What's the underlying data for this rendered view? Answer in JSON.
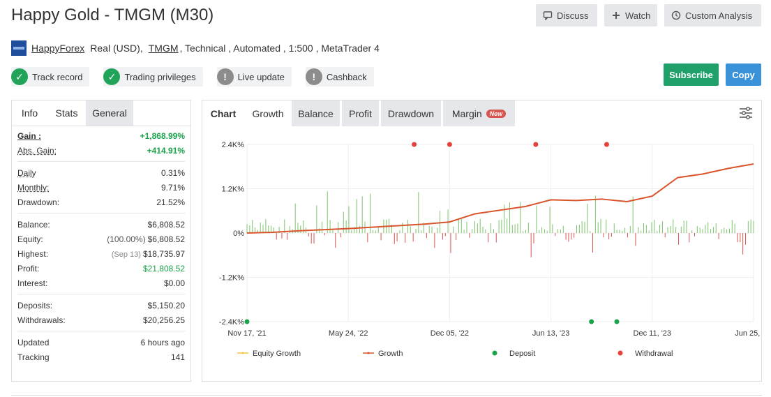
{
  "header": {
    "title": "Happy Gold - TMGM (M30)",
    "buttons": [
      {
        "label": "Discuss",
        "icon": "comment-icon"
      },
      {
        "label": "Watch",
        "icon": "plus-icon"
      },
      {
        "label": "Custom Analysis",
        "icon": "clock-icon"
      }
    ]
  },
  "meta": {
    "author": "HappyForex",
    "account_type": "Real (USD),",
    "broker": "TMGM",
    "details": ", Technical , Automated , 1:500 , MetaTrader 4"
  },
  "badges": [
    {
      "label": "Track record",
      "status": "ok"
    },
    {
      "label": "Trading privileges",
      "status": "ok"
    },
    {
      "label": "Live update",
      "status": "warn"
    },
    {
      "label": "Cashback",
      "status": "warn"
    }
  ],
  "actions": {
    "subscribe": "Subscribe",
    "copy": "Copy"
  },
  "left_tabs": [
    "Info",
    "Stats",
    "General"
  ],
  "stats": {
    "gain": {
      "label": "Gain :",
      "value": "+1,868.99%"
    },
    "abs_gain": {
      "label": "Abs. Gain:",
      "value": "+414.91%"
    },
    "daily": {
      "label": "Daily",
      "value": "0.31%"
    },
    "monthly": {
      "label": "Monthly:",
      "value": "9.71%"
    },
    "drawdown": {
      "label": "Drawdown:",
      "value": "21.52%"
    },
    "balance": {
      "label": "Balance:",
      "value": "$6,808.52"
    },
    "equity": {
      "label": "Equity:",
      "pre": "(100.00%)",
      "value": "$6,808.52"
    },
    "highest": {
      "label": "Highest:",
      "pre": "(Sep 13)",
      "value": "$18,735.97"
    },
    "profit": {
      "label": "Profit:",
      "value": "$21,808.52"
    },
    "interest": {
      "label": "Interest:",
      "value": "$0.00"
    },
    "deposits": {
      "label": "Deposits:",
      "value": "$5,150.20"
    },
    "withdrawals": {
      "label": "Withdrawals:",
      "value": "$20,256.25"
    },
    "updated": {
      "label": "Updated",
      "value": "6 hours ago"
    },
    "tracking": {
      "label": "Tracking",
      "value": "141"
    }
  },
  "chart_tabs": {
    "chart": "Chart",
    "growth": "Growth",
    "balance": "Balance",
    "profit": "Profit",
    "drawdown": "Drawdown",
    "margin": "Margin",
    "new_badge": "New"
  },
  "colors": {
    "growth": "#d9532b",
    "equity": "#f4c542",
    "deposit": "#1aa34a",
    "withdrawal": "#e2433a",
    "bar_pos": "#7cc36a",
    "bar_neg": "#d9534f"
  },
  "chart_data": {
    "type": "line",
    "y_ticks": [
      "2.4K%",
      "1.2K%",
      "0%",
      "-1.2K%",
      "-2.4K%"
    ],
    "y_tick_values": [
      2400,
      1200,
      0,
      -1200,
      -2400
    ],
    "ylim": [
      -2400,
      2400
    ],
    "x_ticks": [
      "Nov 17, '21",
      "May 24, '22",
      "Dec 05, '22",
      "Jun 13, '23",
      "Dec 11, '23",
      "Jun 25, '24"
    ],
    "grid": true,
    "legend_position": "bottom",
    "legend": [
      "Equity Growth",
      "Growth",
      "Deposit",
      "Withdrawal"
    ],
    "series": [
      {
        "name": "Growth",
        "points": [
          [
            0,
            0
          ],
          [
            0.05,
            20
          ],
          [
            0.1,
            60
          ],
          [
            0.15,
            90
          ],
          [
            0.2,
            120
          ],
          [
            0.25,
            160
          ],
          [
            0.3,
            200
          ],
          [
            0.35,
            240
          ],
          [
            0.4,
            300
          ],
          [
            0.45,
            520
          ],
          [
            0.5,
            620
          ],
          [
            0.55,
            720
          ],
          [
            0.6,
            900
          ],
          [
            0.65,
            880
          ],
          [
            0.7,
            920
          ],
          [
            0.75,
            850
          ],
          [
            0.8,
            1000
          ],
          [
            0.85,
            1500
          ],
          [
            0.9,
            1600
          ],
          [
            0.95,
            1750
          ],
          [
            1,
            1870
          ]
        ]
      }
    ],
    "deposit_markers": [
      0,
      0.68,
      0.73
    ],
    "withdrawal_markers": [
      0.33,
      0.4,
      0.57,
      0.71
    ]
  }
}
